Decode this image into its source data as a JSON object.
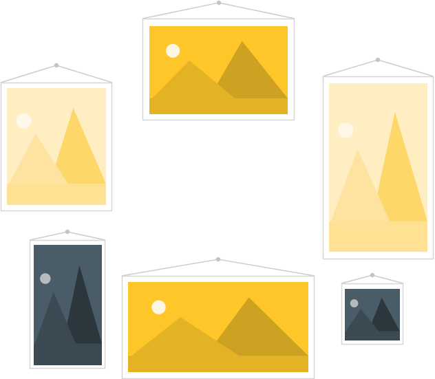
{
  "palette": {
    "background": "#ffffff",
    "frame_fill": "#ffffff",
    "frame_stroke": "#d6d6d6",
    "string": "#cccccc",
    "hook": "#c4c4c4"
  },
  "themes": {
    "gold": {
      "sky": "#fec628",
      "sun": "#fdf6e4",
      "far_mountain": "#cda121",
      "near_mountain": "#e3b325",
      "ground": "#e3b325"
    },
    "pale": {
      "sky": "#feeec2",
      "sun": "#fff8ea",
      "far_mountain": "#fed76b",
      "near_mountain": "#fee2a0",
      "ground": "#fee192"
    },
    "dark": {
      "sky": "#4a5c68",
      "sun": "#b8bbbd",
      "far_mountain": "#2b363d",
      "near_mountain": "#3a4952",
      "ground": "#3a4952"
    }
  },
  "pictures": [
    {
      "name": "gold-landscape-picture-top",
      "theme": "gold",
      "icon": "landscape-icon"
    },
    {
      "name": "pale-landscape-picture-left",
      "theme": "pale",
      "icon": "landscape-icon"
    },
    {
      "name": "pale-landscape-picture-right",
      "theme": "pale",
      "icon": "landscape-icon"
    },
    {
      "name": "dark-landscape-picture-bottom-left",
      "theme": "dark",
      "icon": "landscape-icon"
    },
    {
      "name": "gold-landscape-picture-bottom",
      "theme": "gold",
      "icon": "landscape-icon"
    },
    {
      "name": "dark-landscape-picture-small",
      "theme": "dark",
      "icon": "landscape-icon"
    }
  ]
}
